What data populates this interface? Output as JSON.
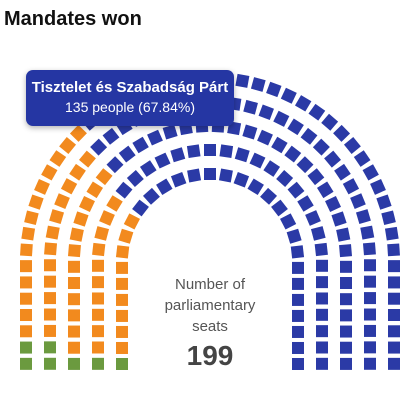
{
  "chart_data": {
    "type": "parliament",
    "title": "Mandates won",
    "series": [
      {
        "name": "Tisztelet és Szabadság Párt",
        "color": "#2b3aa6",
        "values": [
          135
        ],
        "value_labels": [
          "135 people (67.84%)"
        ]
      },
      {
        "color": "#f28a1e",
        "values": [
          57
        ]
      },
      {
        "color": "#6b9a3f",
        "values": [
          7
        ]
      }
    ],
    "center_label": "Number of parliamentary seats",
    "total": 199
  }
}
